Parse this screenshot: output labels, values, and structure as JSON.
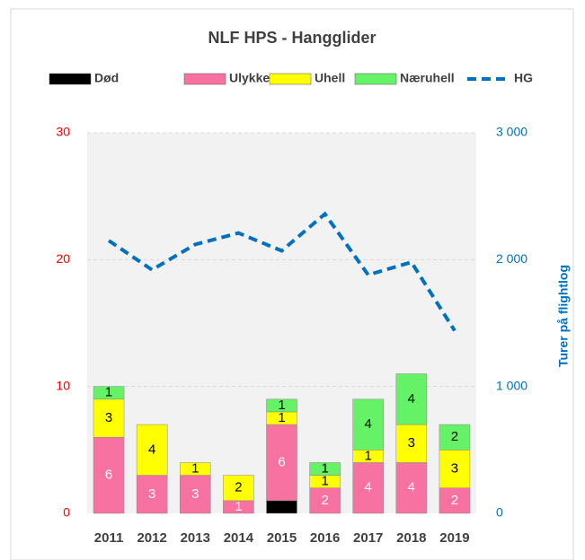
{
  "chart_data": {
    "type": "bar",
    "stacked": true,
    "title": "NLF HPS - Hangglider",
    "categories": [
      "2011",
      "2012",
      "2013",
      "2014",
      "2015",
      "2016",
      "2017",
      "2018",
      "2019"
    ],
    "series": [
      {
        "name": "Død",
        "color": "#000000",
        "values": [
          0,
          0,
          0,
          0,
          1,
          0,
          0,
          0,
          0
        ],
        "data_labels": false
      },
      {
        "name": "Ulykke",
        "color": "#f772a0",
        "values": [
          6,
          3,
          3,
          1,
          6,
          2,
          4,
          4,
          2
        ],
        "data_labels": true
      },
      {
        "name": "Uhell",
        "color": "#ffff00",
        "values": [
          3,
          4,
          1,
          2,
          1,
          1,
          1,
          3,
          3
        ],
        "data_labels": true
      },
      {
        "name": "Næruhell",
        "color": "#66f266",
        "values": [
          1,
          0,
          0,
          0,
          1,
          1,
          4,
          4,
          2
        ],
        "data_labels": true
      },
      {
        "name": "HG",
        "type": "line",
        "axis": "y2",
        "color": "#0070c0",
        "dashed": true,
        "values": [
          2150,
          1920,
          2120,
          2210,
          2070,
          2360,
          1880,
          1980,
          1440
        ]
      }
    ],
    "ylim": [
      0,
      30
    ],
    "yticks": [
      0,
      10,
      20,
      30
    ],
    "y2lim": [
      0,
      3000
    ],
    "y2ticks": [
      0,
      {
        "value": 1000,
        "label": "1 000"
      },
      {
        "value": 2000,
        "label": "2 000"
      },
      {
        "value": 3000,
        "label": "3 000"
      }
    ],
    "y2label": "Turer på flightlog",
    "grid": true,
    "legend": "top"
  }
}
